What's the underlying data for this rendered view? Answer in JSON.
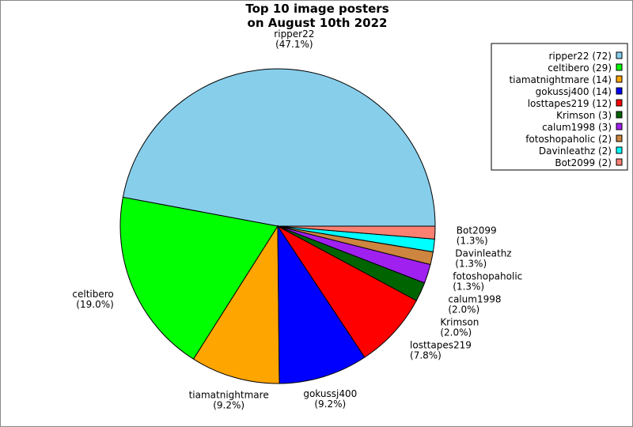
{
  "chart_data": {
    "type": "pie",
    "title": [
      "Top 10 image posters",
      "on August 10th 2022"
    ],
    "start_angle_deg": 0,
    "direction": "counterclockwise",
    "legend_position": "top-right",
    "slices": [
      {
        "label": "ripper22",
        "value": 72,
        "percent": "47.1%",
        "color": "#87CEEB"
      },
      {
        "label": "celtibero",
        "value": 29,
        "percent": "19.0%",
        "color": "#00FF00"
      },
      {
        "label": "tiamatnightmare",
        "value": 14,
        "percent": "9.2%",
        "color": "#FFA500"
      },
      {
        "label": "gokussj400",
        "value": 14,
        "percent": "9.2%",
        "color": "#0000FF"
      },
      {
        "label": "losttapes219",
        "value": 12,
        "percent": "7.8%",
        "color": "#FF0000"
      },
      {
        "label": "Krimson",
        "value": 3,
        "percent": "2.0%",
        "color": "#006400"
      },
      {
        "label": "calum1998",
        "value": 3,
        "percent": "2.0%",
        "color": "#A020F0"
      },
      {
        "label": "fotoshopaholic",
        "value": 2,
        "percent": "1.3%",
        "color": "#CD853F"
      },
      {
        "label": "Davinleathz",
        "value": 2,
        "percent": "1.3%",
        "color": "#00FFFF"
      },
      {
        "label": "Bot2099",
        "value": 2,
        "percent": "1.3%",
        "color": "#FA8072"
      }
    ]
  }
}
